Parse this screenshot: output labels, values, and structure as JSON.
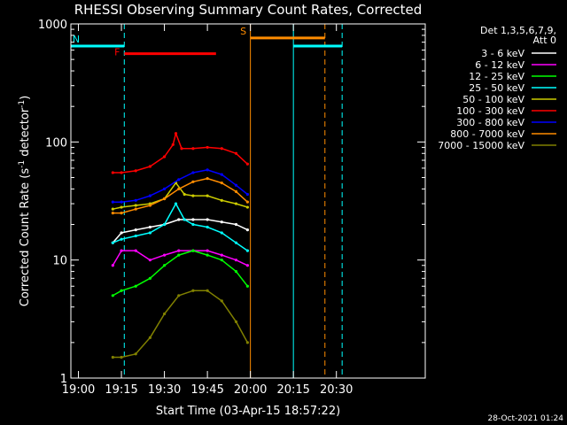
{
  "chart_data": {
    "type": "line",
    "title": "RHESSI Observing Summary Count Rates, Corrected",
    "xlabel": "Start Time (03-Apr-15 18:57:22)",
    "ylabel": "Corrected Count Rate (s",
    "ylabel_sup": "-1",
    "ylabel_mid": " detector",
    "ylabel_tail": ")",
    "y_scale": "log",
    "xlim": [
      "18:57:22",
      "21:01:00"
    ],
    "ylim": [
      1,
      1000
    ],
    "x_ticks": [
      "19:00",
      "19:15",
      "19:30",
      "19:45",
      "20:00",
      "20:15",
      "20:30"
    ],
    "y_ticks": [
      {
        "value": 1,
        "label": "1"
      },
      {
        "value": 10,
        "label": "10"
      },
      {
        "value": 100,
        "label": "100"
      },
      {
        "value": 1000,
        "label": "1000"
      }
    ],
    "legend": {
      "position": "right",
      "header": [
        "Det 1,3,5,6,7,9,",
        "Att 0"
      ],
      "entries": [
        {
          "label": "3 - 6 keV",
          "color": "#ffffff"
        },
        {
          "label": "6 - 12 keV",
          "color": "#ff00ff"
        },
        {
          "label": "12 - 25 keV",
          "color": "#00ff00"
        },
        {
          "label": "25 - 50 keV",
          "color": "#00ffff"
        },
        {
          "label": "50 - 100 keV",
          "color": "#cccc00"
        },
        {
          "label": "100 - 300 keV",
          "color": "#ff0000"
        },
        {
          "label": "300 - 800 keV",
          "color": "#0000ff"
        },
        {
          "label": "800 - 7000 keV",
          "color": "#ff8c00"
        },
        {
          "label": "7000 - 15000 keV",
          "color": "#808000"
        }
      ]
    },
    "series": [
      {
        "band": "3 - 6 keV",
        "color": "#ffffff",
        "x": [
          "19:12",
          "19:15",
          "19:20",
          "19:25",
          "19:30",
          "19:35",
          "19:40",
          "19:45",
          "19:50",
          "19:55",
          "19:59"
        ],
        "y": [
          14,
          17,
          18,
          19,
          20,
          22,
          22,
          22,
          21,
          20,
          18
        ]
      },
      {
        "band": "6 - 12 keV",
        "color": "#ff00ff",
        "x": [
          "19:12",
          "19:15",
          "19:20",
          "19:25",
          "19:30",
          "19:35",
          "19:40",
          "19:45",
          "19:50",
          "19:55",
          "19:59"
        ],
        "y": [
          9,
          12,
          12,
          10,
          11,
          12,
          12,
          12,
          11,
          10,
          9
        ]
      },
      {
        "band": "12 - 25 keV",
        "color": "#00ff00",
        "x": [
          "19:12",
          "19:15",
          "19:20",
          "19:25",
          "19:30",
          "19:35",
          "19:40",
          "19:45",
          "19:50",
          "19:55",
          "19:59"
        ],
        "y": [
          5,
          5.5,
          6,
          7,
          9,
          11,
          12,
          11,
          10,
          8,
          6
        ]
      },
      {
        "band": "25 - 50 keV",
        "color": "#00ffff",
        "x": [
          "19:12",
          "19:15",
          "19:20",
          "19:25",
          "19:30",
          "19:34",
          "19:37",
          "19:40",
          "19:45",
          "19:50",
          "19:55",
          "19:59"
        ],
        "y": [
          14,
          15,
          16,
          17,
          20,
          30,
          22,
          20,
          19,
          17,
          14,
          12
        ]
      },
      {
        "band": "50 - 100 keV",
        "color": "#cccc00",
        "x": [
          "19:12",
          "19:15",
          "19:20",
          "19:25",
          "19:30",
          "19:34",
          "19:37",
          "19:40",
          "19:45",
          "19:50",
          "19:55",
          "19:59"
        ],
        "y": [
          27,
          28,
          29,
          30,
          33,
          45,
          36,
          35,
          35,
          32,
          30,
          28
        ]
      },
      {
        "band": "100 - 300 keV",
        "color": "#ff0000",
        "x": [
          "19:12",
          "19:15",
          "19:20",
          "19:25",
          "19:30",
          "19:33",
          "19:34",
          "19:36",
          "19:40",
          "19:45",
          "19:50",
          "19:55",
          "19:59"
        ],
        "y": [
          55,
          55,
          57,
          62,
          75,
          95,
          118,
          88,
          88,
          90,
          88,
          80,
          65
        ]
      },
      {
        "band": "300 - 800 keV",
        "color": "#0000ff",
        "x": [
          "19:12",
          "19:15",
          "19:20",
          "19:25",
          "19:30",
          "19:35",
          "19:40",
          "19:45",
          "19:50",
          "19:55",
          "19:59"
        ],
        "y": [
          31,
          31,
          32,
          35,
          40,
          48,
          55,
          58,
          53,
          43,
          36
        ]
      },
      {
        "band": "800 - 7000 keV",
        "color": "#ff8c00",
        "x": [
          "19:12",
          "19:15",
          "19:20",
          "19:25",
          "19:30",
          "19:35",
          "19:40",
          "19:45",
          "19:50",
          "19:55",
          "19:59"
        ],
        "y": [
          25,
          25,
          27,
          29,
          33,
          40,
          46,
          49,
          45,
          38,
          31
        ]
      },
      {
        "band": "7000 - 15000 keV",
        "color": "#808000",
        "x": [
          "19:12",
          "19:15",
          "19:20",
          "19:25",
          "19:30",
          "19:35",
          "19:40",
          "19:45",
          "19:50",
          "19:55",
          "19:59"
        ],
        "y": [
          1.5,
          1.5,
          1.6,
          2.2,
          3.5,
          5,
          5.5,
          5.5,
          4.5,
          3,
          2
        ]
      }
    ],
    "intervals": [
      {
        "label": "N",
        "color": "#00ffff",
        "level": 650,
        "x": [
          "18:57:22",
          "19:16"
        ],
        "dashed_end": true
      },
      {
        "label": "F",
        "color": "#ff0000",
        "level": 560,
        "x": [
          "19:16",
          "19:48"
        ]
      },
      {
        "label": "S",
        "color": "#ff8c00",
        "level": 760,
        "x": [
          "20:00",
          "20:26"
        ]
      },
      {
        "label": "",
        "color": "#00ffff",
        "level": 650,
        "x": [
          "20:15",
          "20:32"
        ],
        "dashed_end": true
      }
    ],
    "vertical_markers": [
      {
        "x": "18:57:22",
        "color": "#00ffff",
        "style": "solid"
      },
      {
        "x": "19:16",
        "color": "#00ffff",
        "style": "dashed"
      },
      {
        "x": "20:00",
        "color": "#ff8c00",
        "style": "solid"
      },
      {
        "x": "20:15",
        "color": "#00ffff",
        "style": "solid"
      },
      {
        "x": "20:26",
        "color": "#ff8c00",
        "style": "dashed"
      },
      {
        "x": "20:32",
        "color": "#00ffff",
        "style": "dashed"
      }
    ],
    "timestamp": "28-Oct-2021 01:24"
  }
}
